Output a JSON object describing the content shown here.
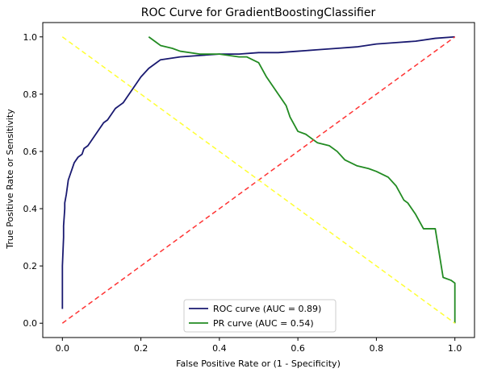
{
  "chart_data": {
    "type": "line",
    "title": "ROC Curve for GradientBoostingClassifier",
    "xlabel": "False Positive Rate or (1 - Specificity)",
    "ylabel": "True Positive Rate or Sensitivity",
    "xlim": [
      -0.05,
      1.05
    ],
    "ylim": [
      -0.05,
      1.05
    ],
    "xticks": [
      0.0,
      0.2,
      0.4,
      0.6,
      0.8,
      1.0
    ],
    "yticks": [
      0.0,
      0.2,
      0.4,
      0.6,
      0.8,
      1.0
    ],
    "xtick_labels": [
      "0.0",
      "0.2",
      "0.4",
      "0.6",
      "0.8",
      "1.0"
    ],
    "ytick_labels": [
      "0.0",
      "0.2",
      "0.4",
      "0.6",
      "0.8",
      "1.0"
    ],
    "grid": false,
    "legend_position": "bottom-center",
    "legend": [
      "ROC curve (AUC = 0.89)",
      "PR curve (AUC = 0.54)"
    ],
    "series": [
      {
        "name": "ROC curve (AUC = 0.89)",
        "color": "#191970",
        "style": "solid",
        "x": [
          0.0,
          0.0,
          0.003,
          0.003,
          0.006,
          0.006,
          0.01,
          0.013,
          0.015,
          0.02,
          0.025,
          0.03,
          0.04,
          0.05,
          0.055,
          0.065,
          0.075,
          0.085,
          0.095,
          0.105,
          0.115,
          0.125,
          0.135,
          0.145,
          0.155,
          0.165,
          0.18,
          0.2,
          0.22,
          0.24,
          0.25,
          0.3,
          0.35,
          0.4,
          0.45,
          0.5,
          0.55,
          0.6,
          0.65,
          0.7,
          0.75,
          0.8,
          0.85,
          0.9,
          0.95,
          1.0
        ],
        "y": [
          0.05,
          0.2,
          0.3,
          0.34,
          0.4,
          0.42,
          0.45,
          0.48,
          0.5,
          0.52,
          0.54,
          0.56,
          0.58,
          0.59,
          0.61,
          0.62,
          0.64,
          0.66,
          0.68,
          0.7,
          0.71,
          0.73,
          0.75,
          0.76,
          0.77,
          0.79,
          0.82,
          0.86,
          0.89,
          0.91,
          0.92,
          0.93,
          0.935,
          0.94,
          0.94,
          0.945,
          0.945,
          0.95,
          0.955,
          0.96,
          0.965,
          0.975,
          0.98,
          0.985,
          0.995,
          1.0
        ]
      },
      {
        "name": "PR curve (AUC = 0.54)",
        "color": "#228b22",
        "style": "solid",
        "x": [
          0.22,
          0.24,
          0.25,
          0.28,
          0.3,
          0.35,
          0.4,
          0.45,
          0.47,
          0.5,
          0.52,
          0.55,
          0.57,
          0.58,
          0.6,
          0.62,
          0.64,
          0.65,
          0.68,
          0.7,
          0.72,
          0.75,
          0.78,
          0.8,
          0.83,
          0.85,
          0.87,
          0.88,
          0.89,
          0.9,
          0.92,
          0.95,
          0.97,
          0.99,
          1.0,
          1.0
        ],
        "y": [
          1.0,
          0.98,
          0.97,
          0.96,
          0.95,
          0.94,
          0.94,
          0.93,
          0.93,
          0.91,
          0.86,
          0.8,
          0.76,
          0.72,
          0.67,
          0.66,
          0.64,
          0.63,
          0.62,
          0.6,
          0.57,
          0.55,
          0.54,
          0.53,
          0.51,
          0.48,
          0.43,
          0.42,
          0.4,
          0.38,
          0.33,
          0.33,
          0.16,
          0.15,
          0.14,
          0.0
        ]
      },
      {
        "name": "",
        "color": "#ff3333",
        "style": "dashed",
        "x": [
          0.0,
          1.0
        ],
        "y": [
          0.0,
          1.0
        ]
      },
      {
        "name": "",
        "color": "#ffff33",
        "style": "dashed",
        "x": [
          0.0,
          1.0
        ],
        "y": [
          1.0,
          0.0
        ]
      }
    ]
  }
}
